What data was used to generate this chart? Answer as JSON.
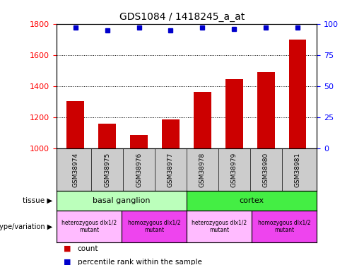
{
  "title": "GDS1084 / 1418245_a_at",
  "samples": [
    "GSM38974",
    "GSM38975",
    "GSM38976",
    "GSM38977",
    "GSM38978",
    "GSM38979",
    "GSM38980",
    "GSM38981"
  ],
  "counts": [
    1305,
    1160,
    1085,
    1185,
    1365,
    1445,
    1490,
    1700
  ],
  "percentile_ranks": [
    97,
    95,
    97,
    95,
    97,
    96,
    97,
    97
  ],
  "ylim_left": [
    1000,
    1800
  ],
  "ylim_right": [
    0,
    100
  ],
  "yticks_left": [
    1000,
    1200,
    1400,
    1600,
    1800
  ],
  "yticks_right": [
    0,
    25,
    50,
    75,
    100
  ],
  "bar_color": "#cc0000",
  "dot_color": "#0000cc",
  "sample_bg_color": "#cccccc",
  "tissue_labels": [
    {
      "label": "basal ganglion",
      "start": 0,
      "end": 3,
      "color": "#bbffbb"
    },
    {
      "label": "cortex",
      "start": 4,
      "end": 7,
      "color": "#44ee44"
    }
  ],
  "genotype_labels": [
    {
      "label": "heterozygous dlx1/2\nmutant",
      "start": 0,
      "end": 1,
      "color": "#ffbbff"
    },
    {
      "label": "homozygous dlx1/2\nmutant",
      "start": 2,
      "end": 3,
      "color": "#ee44ee"
    },
    {
      "label": "heterozygous dlx1/2\nmutant",
      "start": 4,
      "end": 5,
      "color": "#ffbbff"
    },
    {
      "label": "homozygous dlx1/2\nmutant",
      "start": 6,
      "end": 7,
      "color": "#ee44ee"
    }
  ],
  "legend_count_label": "count",
  "legend_percentile_label": "percentile rank within the sample",
  "tissue_row_label": "tissue",
  "genotype_row_label": "genotype/variation",
  "background_color": "#ffffff"
}
